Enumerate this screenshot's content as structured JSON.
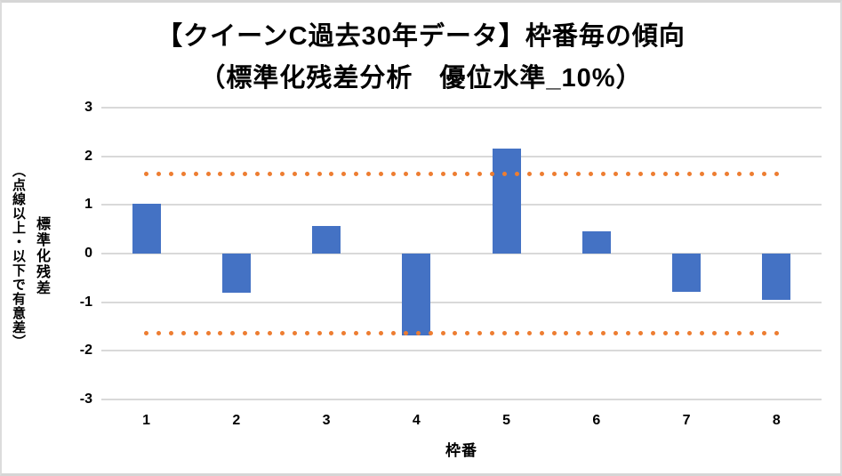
{
  "chart_data": {
    "type": "bar",
    "title": "【クイーンC過去30年データ】枠番毎の傾向",
    "subtitle": "（標準化残差分析　優位水準_10%）",
    "xlabel": "枠番",
    "ylabel_main": "標準化残差",
    "ylabel_note": "（点線以上・以下で有意差）",
    "categories": [
      "1",
      "2",
      "3",
      "4",
      "5",
      "6",
      "7",
      "8"
    ],
    "values": [
      1.03,
      -0.81,
      0.57,
      -1.68,
      2.15,
      0.45,
      -0.78,
      -0.95
    ],
    "series_name": "標準化残差",
    "thresholds": [
      1.645,
      -1.645
    ],
    "y_ticks": [
      3,
      2,
      1,
      0,
      -1,
      -2,
      -3
    ],
    "ylim": [
      -3,
      3
    ],
    "grid": true,
    "legend": "none",
    "bar_color": "#4472C4",
    "threshold_color": "#ED7D31",
    "gridline_color": "#D9D9D9",
    "text_color": "#000000",
    "background_color": "#FFFFFF"
  }
}
